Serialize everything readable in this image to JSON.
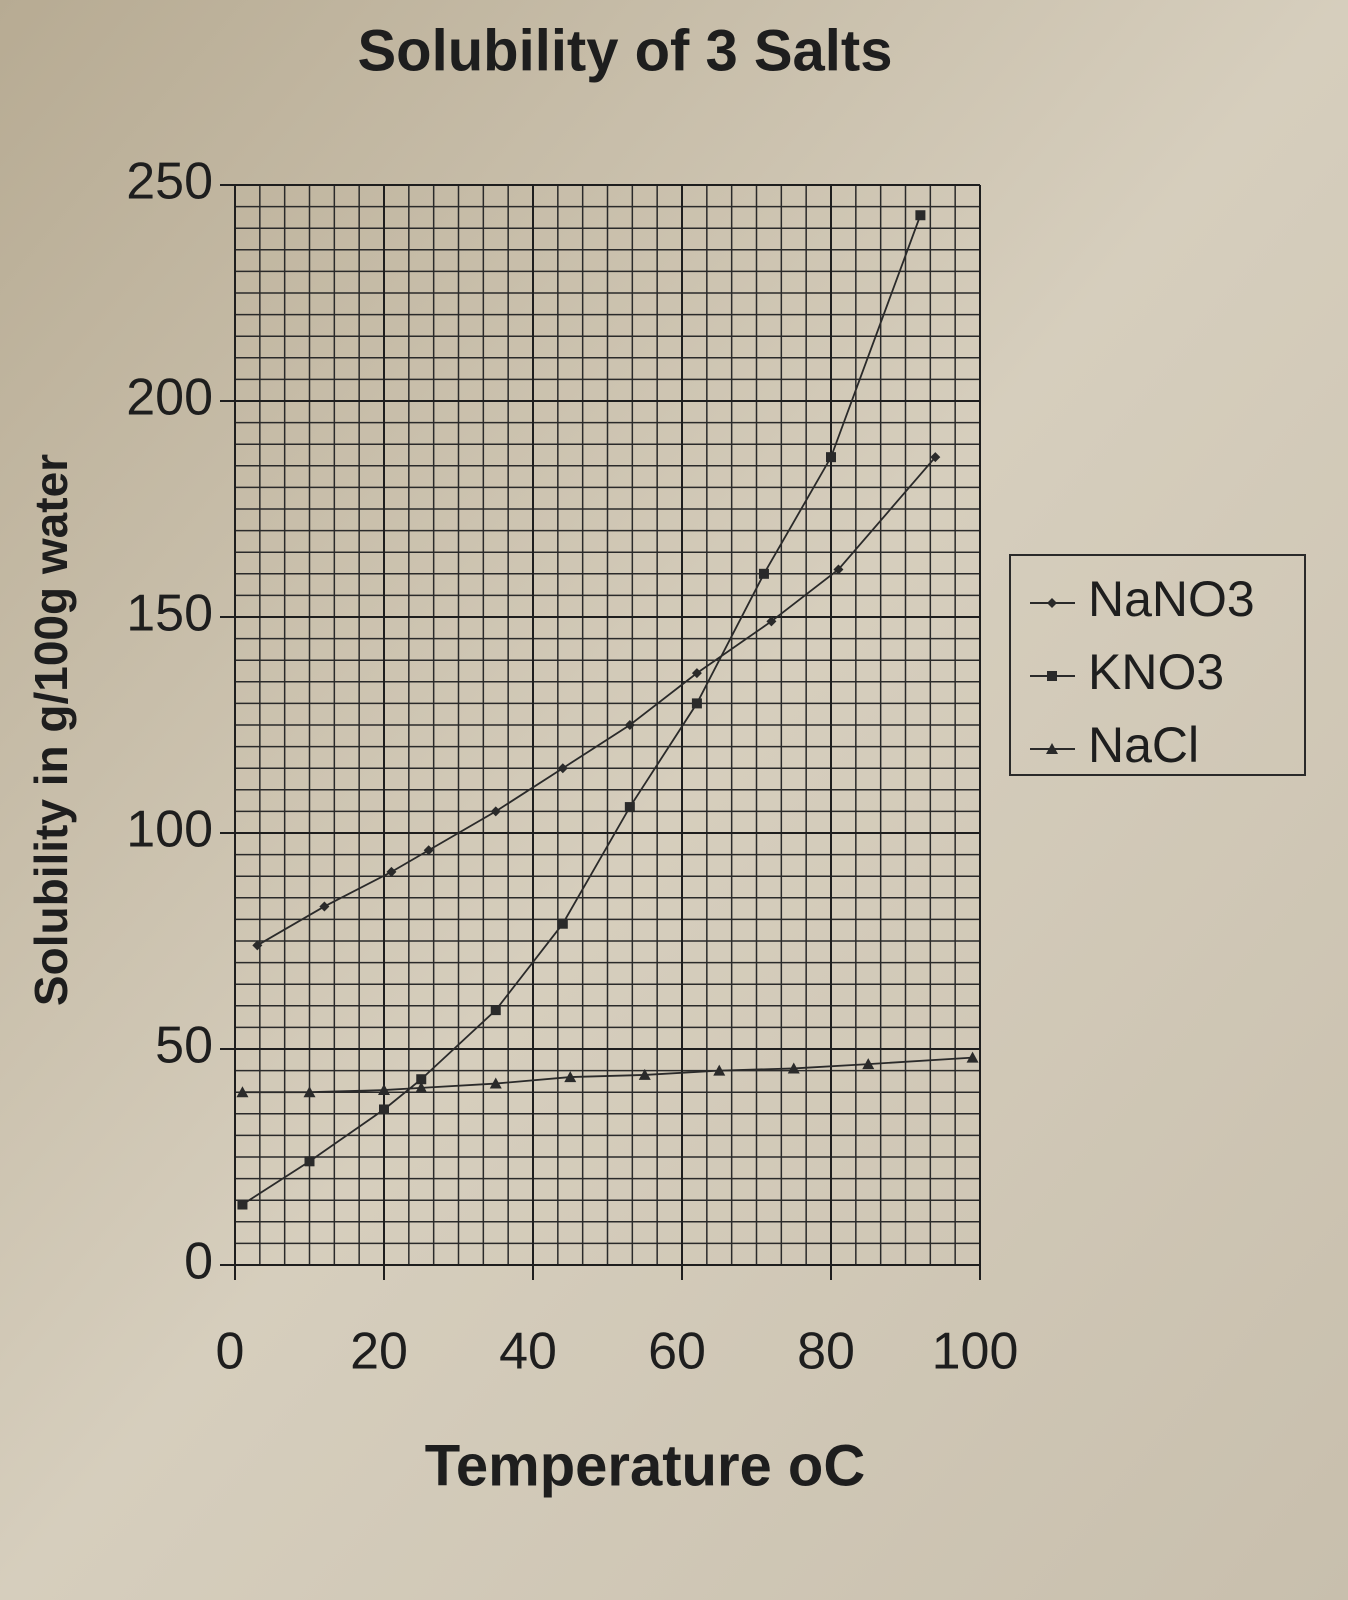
{
  "chart_data": {
    "type": "line",
    "title": "Solubility of 3 Salts",
    "x_label": "Temperature oC",
    "y_label": "Solubility in g/100g water",
    "series": [
      {
        "name": "NaNO3",
        "color": "#2a2a2a",
        "marker": "diamond",
        "x": [
          3,
          12,
          21,
          26,
          35,
          44,
          53,
          62,
          72,
          81,
          94
        ],
        "values": [
          74,
          83,
          91,
          96,
          105,
          115,
          125,
          137,
          149,
          161,
          187
        ]
      },
      {
        "name": "KNO3",
        "color": "#2a2a2a",
        "marker": "square",
        "x": [
          1,
          10,
          20,
          25,
          35,
          44,
          53,
          62,
          71,
          80,
          92
        ],
        "values": [
          14,
          24,
          36,
          43,
          59,
          79,
          106,
          130,
          160,
          187,
          243
        ]
      },
      {
        "name": "NaCl",
        "color": "#2a2a2a",
        "marker": "triangle",
        "x": [
          1,
          10,
          20,
          25,
          35,
          45,
          55,
          65,
          75,
          85,
          99
        ],
        "values": [
          40,
          40,
          40.5,
          41,
          42,
          43.5,
          44,
          45,
          45.5,
          46.5,
          48
        ]
      }
    ],
    "xlim": [
      0,
      100
    ],
    "xticks": [
      0,
      20,
      40,
      60,
      80,
      100
    ],
    "ylim": [
      0,
      250
    ],
    "yticks": [
      0,
      50,
      100,
      150,
      200,
      250
    ],
    "grid": true,
    "legend": "right"
  }
}
